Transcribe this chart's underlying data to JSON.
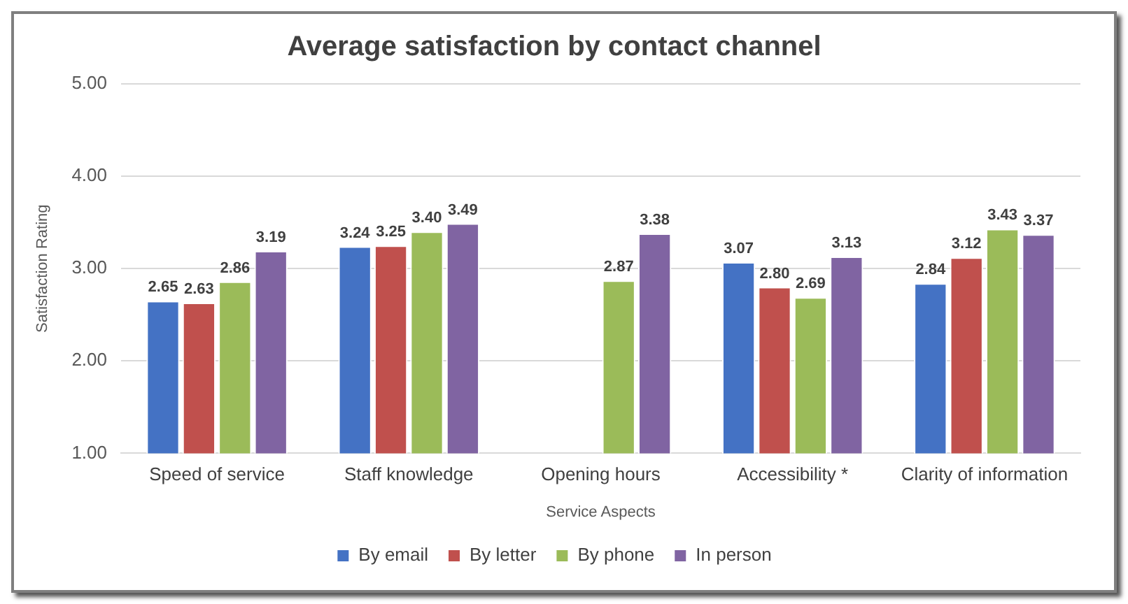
{
  "chart_data": {
    "type": "bar",
    "title": "Average satisfaction by contact channel",
    "xlabel": "Service Aspects",
    "ylabel": "Satisfaction Rating",
    "categories": [
      "Speed of service",
      "Staff knowledge",
      "Opening hours",
      "Accessibility *",
      "Clarity of information"
    ],
    "series": [
      {
        "name": "By email",
        "color": "#4472c4",
        "values": [
          2.65,
          3.24,
          null,
          3.07,
          2.84
        ],
        "value_labels": [
          "2.65",
          "3.24",
          null,
          "3.07",
          "2.84"
        ]
      },
      {
        "name": "By letter",
        "color": "#c0504d",
        "values": [
          2.63,
          3.25,
          null,
          2.8,
          3.12
        ],
        "value_labels": [
          "2.63",
          "3.25",
          null,
          "2.80",
          "3.12"
        ]
      },
      {
        "name": "By phone",
        "color": "#9bbb59",
        "values": [
          2.86,
          3.4,
          2.87,
          2.69,
          3.43
        ],
        "value_labels": [
          "2.86",
          "3.40",
          "2.87",
          "2.69",
          "3.43"
        ]
      },
      {
        "name": "In person",
        "color": "#8064a2",
        "values": [
          3.19,
          3.49,
          3.38,
          3.13,
          3.37
        ],
        "value_labels": [
          "3.19",
          "3.49",
          "3.38",
          "3.13",
          "3.37"
        ]
      }
    ],
    "ylim": [
      1,
      5
    ],
    "yticks": [
      {
        "value": 1,
        "label": "1.00"
      },
      {
        "value": 2,
        "label": "2.00"
      },
      {
        "value": 3,
        "label": "3.00"
      },
      {
        "value": 4,
        "label": "4.00"
      },
      {
        "value": 5,
        "label": "5.00"
      }
    ],
    "grid": "y",
    "legend": "bottom"
  }
}
